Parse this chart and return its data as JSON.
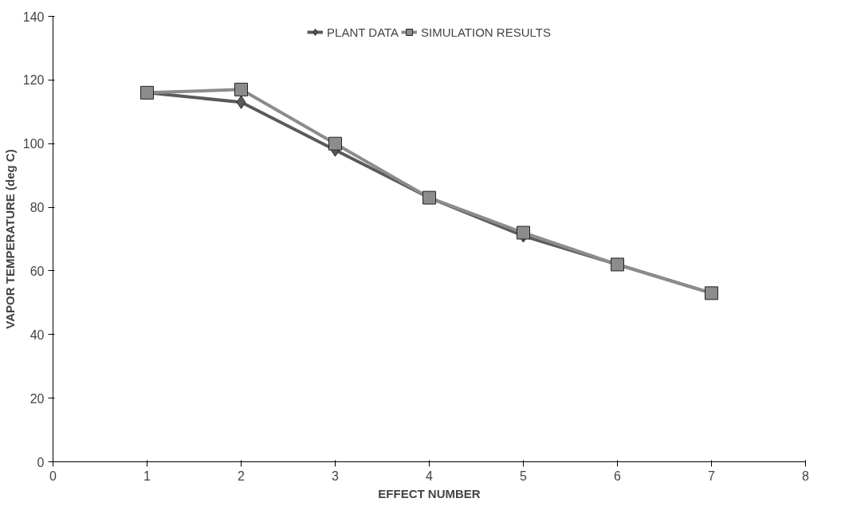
{
  "chart_data": {
    "type": "line",
    "xlabel": "EFFECT NUMBER",
    "ylabel": "VAPOR TEMPERATURE (deg C)",
    "x": [
      1,
      2,
      3,
      4,
      5,
      6,
      7
    ],
    "series": [
      {
        "name": "PLANT DATA",
        "color": "#5a5a5a",
        "marker": "diamond",
        "values": [
          116,
          113,
          98,
          83,
          71,
          62,
          53
        ]
      },
      {
        "name": "SIMULATION RESULTS",
        "color": "#8c8c8c",
        "marker": "square",
        "values": [
          116,
          117,
          100,
          83,
          72,
          62,
          53
        ]
      }
    ],
    "xlim": [
      0,
      8
    ],
    "xticks": [
      0,
      1,
      2,
      3,
      4,
      5,
      6,
      7,
      8
    ],
    "ylim": [
      0,
      140
    ],
    "yticks": [
      0,
      20,
      40,
      60,
      80,
      100,
      120,
      140
    ],
    "grid": false,
    "legend": "top",
    "line_style": "solid"
  }
}
